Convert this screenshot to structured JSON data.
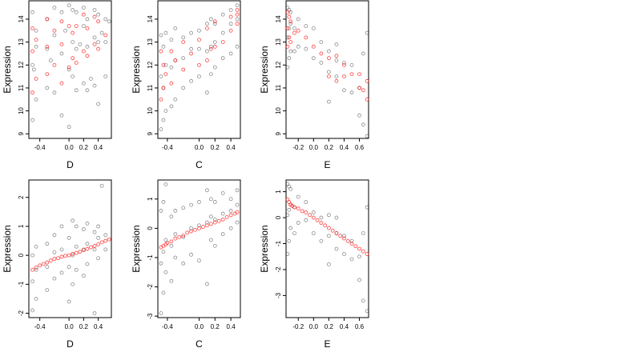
{
  "chart_data": [
    {
      "type": "scatter",
      "title": "",
      "xlabel": "D",
      "ylabel": "Expression",
      "xlim": [
        -0.55,
        0.58
      ],
      "ylim": [
        8.8,
        14.8
      ],
      "xticks": [
        -0.4,
        0.0,
        0.2,
        0.4
      ],
      "xtick_labels": [
        "-0.4",
        "0.0",
        "0.2",
        "0.4"
      ],
      "yticks": [
        9,
        10,
        11,
        12,
        13,
        14
      ],
      "ytick_labels": [
        "9",
        "10",
        "11",
        "12",
        "13",
        "14"
      ],
      "grid": false,
      "colors": {
        "observed": "#000000",
        "fitted": "#ff0000"
      },
      "series": [
        {
          "role": "observed",
          "x": [
            -0.5,
            -0.5,
            -0.5,
            -0.45,
            -0.45,
            -0.45,
            -0.3,
            -0.3,
            -0.3,
            -0.2,
            -0.2,
            -0.2,
            -0.1,
            -0.1,
            -0.1,
            0.0,
            0.0,
            0.0,
            0.05,
            0.05,
            0.05,
            0.1,
            0.1,
            0.1,
            0.2,
            0.2,
            0.2,
            0.25,
            0.25,
            0.25,
            0.35,
            0.35,
            0.35,
            0.4,
            0.4,
            0.4,
            0.5,
            0.5,
            0.5,
            -0.48,
            -0.25,
            -0.05,
            0.15,
            0.3,
            0.45,
            0.55
          ],
          "y": [
            9.6,
            12.0,
            14.3,
            10.5,
            12.8,
            13.5,
            11.0,
            12.7,
            14.0,
            10.8,
            13.3,
            14.5,
            9.8,
            12.5,
            14.3,
            9.3,
            11.8,
            14.6,
            11.5,
            13.0,
            14.4,
            10.9,
            12.7,
            14.3,
            11.2,
            13.7,
            14.5,
            10.9,
            12.8,
            14.0,
            11.1,
            13.2,
            14.4,
            10.3,
            13.0,
            14.2,
            11.5,
            13.0,
            14.0,
            11.8,
            12.2,
            13.5,
            12.9,
            11.4,
            13.4,
            13.9
          ]
        },
        {
          "role": "fitted",
          "x": [
            -0.5,
            -0.5,
            -0.5,
            -0.45,
            -0.45,
            -0.3,
            -0.3,
            -0.3,
            -0.2,
            -0.2,
            -0.1,
            -0.1,
            -0.1,
            0.0,
            0.0,
            0.05,
            0.05,
            0.1,
            0.1,
            0.2,
            0.2,
            0.25,
            0.25,
            0.35,
            0.35,
            0.4,
            0.4,
            0.5
          ],
          "y": [
            10.8,
            12.6,
            13.6,
            11.4,
            13.1,
            11.6,
            12.8,
            14.0,
            12.0,
            13.5,
            11.2,
            12.9,
            13.9,
            11.9,
            13.7,
            12.3,
            13.4,
            12.1,
            13.7,
            12.6,
            14.2,
            12.4,
            13.6,
            12.9,
            14.1,
            12.7,
            13.9,
            13.3
          ]
        }
      ]
    },
    {
      "type": "scatter",
      "title": "",
      "xlabel": "C",
      "ylabel": "Expression",
      "xlim": [
        -0.52,
        0.52
      ],
      "ylim": [
        8.8,
        14.8
      ],
      "xticks": [
        -0.4,
        0.0,
        0.2,
        0.4
      ],
      "xtick_labels": [
        "-0.4",
        "0.0",
        "0.2",
        "0.4"
      ],
      "yticks": [
        9,
        10,
        11,
        12,
        13,
        14
      ],
      "ytick_labels": [
        "9",
        "10",
        "11",
        "12",
        "13",
        "14"
      ],
      "grid": false,
      "colors": {
        "observed": "#000000",
        "fitted": "#ff0000"
      },
      "series": [
        {
          "role": "observed",
          "x": [
            -0.48,
            -0.48,
            -0.48,
            -0.45,
            -0.45,
            -0.45,
            -0.42,
            -0.42,
            -0.42,
            -0.35,
            -0.35,
            -0.35,
            -0.3,
            -0.3,
            -0.3,
            -0.2,
            -0.2,
            -0.2,
            -0.1,
            -0.1,
            -0.1,
            0.0,
            0.0,
            0.0,
            0.1,
            0.1,
            0.1,
            0.15,
            0.15,
            0.15,
            0.2,
            0.2,
            0.2,
            0.3,
            0.3,
            0.3,
            0.4,
            0.4,
            0.4,
            0.48,
            0.48,
            0.48
          ],
          "y": [
            9.2,
            11.5,
            13.3,
            9.6,
            11.0,
            12.8,
            10.0,
            12.0,
            13.4,
            10.2,
            11.9,
            13.1,
            10.5,
            12.2,
            13.6,
            11.0,
            12.3,
            13.2,
            11.3,
            12.7,
            13.4,
            11.5,
            12.7,
            13.5,
            10.8,
            12.6,
            13.8,
            11.6,
            12.8,
            14.0,
            11.9,
            13.0,
            13.8,
            12.3,
            13.4,
            14.2,
            12.5,
            13.8,
            14.4,
            12.8,
            14.0,
            14.6
          ]
        },
        {
          "role": "fitted",
          "x": [
            -0.48,
            -0.48,
            -0.45,
            -0.45,
            -0.42,
            -0.35,
            -0.35,
            -0.3,
            -0.2,
            -0.2,
            -0.1,
            0.0,
            0.0,
            0.1,
            0.1,
            0.15,
            0.2,
            0.2,
            0.3,
            0.4,
            0.4,
            0.48,
            0.48,
            0.48
          ],
          "y": [
            10.5,
            12.6,
            11.0,
            12.0,
            11.6,
            11.2,
            12.6,
            12.2,
            11.8,
            13.0,
            12.5,
            12.0,
            13.1,
            12.2,
            13.6,
            12.7,
            12.8,
            13.9,
            13.0,
            13.5,
            14.1,
            13.8,
            14.2,
            14.4
          ]
        }
      ]
    },
    {
      "type": "scatter",
      "title": "",
      "xlabel": "E",
      "ylabel": "Expression",
      "xlim": [
        -0.36,
        0.72
      ],
      "ylim": [
        8.8,
        14.8
      ],
      "xticks": [
        -0.2,
        0.0,
        0.2,
        0.4,
        0.6
      ],
      "xtick_labels": [
        "-0.2",
        "0.0",
        "0.2",
        "0.4",
        "0.6"
      ],
      "yticks": [
        9,
        10,
        11,
        12,
        13,
        14
      ],
      "ytick_labels": [
        "9",
        "10",
        "11",
        "12",
        "13",
        "14"
      ],
      "grid": false,
      "colors": {
        "observed": "#000000",
        "fitted": "#ff0000"
      },
      "series": [
        {
          "role": "observed",
          "x": [
            -0.34,
            -0.34,
            -0.34,
            -0.32,
            -0.32,
            -0.32,
            -0.3,
            -0.3,
            -0.3,
            -0.25,
            -0.25,
            -0.2,
            -0.2,
            -0.1,
            -0.1,
            0.0,
            0.0,
            0.1,
            0.1,
            0.2,
            0.2,
            0.2,
            0.3,
            0.3,
            0.3,
            0.4,
            0.4,
            0.5,
            0.5,
            0.6,
            0.6,
            0.65,
            0.65,
            0.7,
            0.7
          ],
          "y": [
            11.9,
            13.2,
            14.5,
            12.3,
            13.6,
            14.4,
            12.6,
            13.8,
            14.3,
            12.6,
            13.6,
            12.8,
            14.0,
            12.7,
            13.7,
            12.3,
            13.6,
            12.1,
            13.0,
            10.4,
            11.7,
            12.6,
            11.5,
            12.2,
            12.9,
            10.9,
            12.1,
            10.8,
            12.0,
            9.8,
            11.0,
            9.4,
            12.5,
            8.9,
            13.4
          ]
        },
        {
          "role": "fitted",
          "x": [
            -0.34,
            -0.34,
            -0.34,
            -0.32,
            -0.32,
            -0.3,
            -0.3,
            -0.25,
            -0.2,
            -0.1,
            0.0,
            0.1,
            0.2,
            0.2,
            0.3,
            0.3,
            0.4,
            0.4,
            0.5,
            0.6,
            0.6,
            0.65,
            0.7,
            0.7
          ],
          "y": [
            12.8,
            13.6,
            14.3,
            13.2,
            14.1,
            13.0,
            13.9,
            13.4,
            13.5,
            13.2,
            12.8,
            12.5,
            11.5,
            12.3,
            11.3,
            12.4,
            11.5,
            12.0,
            11.6,
            11.0,
            11.6,
            10.9,
            10.5,
            11.3
          ]
        }
      ]
    },
    {
      "type": "scatter",
      "title": "",
      "xlabel": "D",
      "ylabel": "Expression",
      "xlim": [
        -0.55,
        0.58
      ],
      "ylim": [
        -2.15,
        2.6
      ],
      "xticks": [
        -0.4,
        0.0,
        0.2,
        0.4
      ],
      "xtick_labels": [
        "-0.4",
        "0.0",
        "0.2",
        "0.4"
      ],
      "yticks": [
        -2,
        -1,
        0,
        1,
        2
      ],
      "ytick_labels": [
        "-2",
        "-1",
        "0",
        "1",
        "2"
      ],
      "grid": false,
      "colors": {
        "observed": "#000000",
        "fitted": "#ff0000"
      },
      "series": [
        {
          "role": "observed",
          "x": [
            -0.5,
            -0.5,
            -0.5,
            -0.45,
            -0.45,
            -0.45,
            -0.3,
            -0.3,
            -0.3,
            -0.2,
            -0.2,
            -0.2,
            -0.1,
            -0.1,
            -0.1,
            0.0,
            0.0,
            0.0,
            0.05,
            0.05,
            0.05,
            0.1,
            0.1,
            0.1,
            0.2,
            0.2,
            0.2,
            0.25,
            0.25,
            0.25,
            0.35,
            0.35,
            0.35,
            0.4,
            0.4,
            0.4,
            0.45,
            0.5,
            0.5
          ],
          "y": [
            -1.9,
            -0.9,
            0.0,
            -1.5,
            -0.5,
            0.3,
            -1.2,
            -0.4,
            0.4,
            -0.8,
            0.1,
            0.7,
            -0.6,
            0.2,
            1.0,
            -1.6,
            -0.4,
            0.6,
            -1.0,
            0.0,
            1.2,
            -0.5,
            0.3,
            1.0,
            -0.7,
            0.2,
            0.9,
            -0.3,
            0.4,
            1.1,
            -2.0,
            0.2,
            0.8,
            -0.1,
            0.6,
            1.0,
            2.4,
            0.2,
            0.7
          ]
        },
        {
          "role": "fitted",
          "x": [
            -0.5,
            -0.45,
            -0.4,
            -0.35,
            -0.3,
            -0.25,
            -0.2,
            -0.15,
            -0.1,
            -0.05,
            0.0,
            0.05,
            0.1,
            0.15,
            0.2,
            0.25,
            0.3,
            0.35,
            0.4,
            0.45,
            0.5,
            0.55
          ],
          "y": [
            -0.5,
            -0.42,
            -0.35,
            -0.3,
            -0.25,
            -0.18,
            -0.12,
            -0.1,
            -0.05,
            -0.02,
            0.0,
            0.05,
            0.08,
            0.12,
            0.18,
            0.22,
            0.28,
            0.32,
            0.38,
            0.45,
            0.5,
            0.55
          ]
        }
      ]
    },
    {
      "type": "scatter",
      "title": "",
      "xlabel": "C",
      "ylabel": "Expression",
      "xlim": [
        -0.52,
        0.52
      ],
      "ylim": [
        -3.05,
        1.65
      ],
      "xticks": [
        -0.4,
        0.0,
        0.2,
        0.4
      ],
      "xtick_labels": [
        "-0.4",
        "0.0",
        "0.2",
        "0.4"
      ],
      "yticks": [
        -3,
        -2,
        -1,
        0,
        1
      ],
      "ytick_labels": [
        "-3",
        "-2",
        "-1",
        "0",
        "1"
      ],
      "grid": false,
      "colors": {
        "observed": "#000000",
        "fitted": "#ff0000"
      },
      "series": [
        {
          "role": "observed",
          "x": [
            -0.48,
            -0.48,
            -0.48,
            -0.45,
            -0.45,
            -0.45,
            -0.42,
            -0.42,
            -0.42,
            -0.35,
            -0.35,
            -0.35,
            -0.3,
            -0.3,
            -0.3,
            -0.2,
            -0.2,
            -0.2,
            -0.1,
            -0.1,
            -0.1,
            0.0,
            0.0,
            0.0,
            0.1,
            0.1,
            0.1,
            0.15,
            0.15,
            0.15,
            0.2,
            0.2,
            0.2,
            0.3,
            0.3,
            0.3,
            0.4,
            0.4,
            0.4,
            0.48,
            0.48,
            0.48
          ],
          "y": [
            -2.9,
            -1.2,
            0.6,
            -2.2,
            -0.8,
            0.9,
            -1.5,
            -0.4,
            1.5,
            -1.8,
            -0.6,
            0.4,
            -1.0,
            -0.2,
            0.6,
            -1.2,
            -0.3,
            0.7,
            -0.9,
            0.0,
            0.8,
            -1.1,
            0.1,
            0.9,
            -1.9,
            0.2,
            1.3,
            -0.4,
            0.4,
            1.0,
            -0.6,
            0.3,
            0.9,
            -0.2,
            0.5,
            1.2,
            0.0,
            0.6,
            1.0,
            0.2,
            0.8,
            1.3
          ]
        },
        {
          "role": "fitted",
          "x": [
            -0.48,
            -0.45,
            -0.42,
            -0.4,
            -0.35,
            -0.3,
            -0.25,
            -0.2,
            -0.15,
            -0.1,
            -0.05,
            0.0,
            0.05,
            0.1,
            0.15,
            0.2,
            0.25,
            0.3,
            0.35,
            0.4,
            0.45,
            0.48
          ],
          "y": [
            -0.65,
            -0.6,
            -0.55,
            -0.5,
            -0.45,
            -0.35,
            -0.3,
            -0.25,
            -0.15,
            -0.1,
            -0.05,
            0.0,
            0.05,
            0.1,
            0.15,
            0.2,
            0.25,
            0.3,
            0.38,
            0.45,
            0.5,
            0.55
          ]
        }
      ]
    },
    {
      "type": "scatter",
      "title": "",
      "xlabel": "E",
      "ylabel": "Expression",
      "xlim": [
        -0.36,
        0.72
      ],
      "ylim": [
        -3.85,
        1.45
      ],
      "xticks": [
        -0.2,
        0.0,
        0.2,
        0.4,
        0.6
      ],
      "xtick_labels": [
        "-0.2",
        "0.0",
        "0.2",
        "0.4",
        "0.6"
      ],
      "yticks": [
        -3,
        -2,
        -1,
        0,
        1
      ],
      "ytick_labels": [
        "-3",
        "-2",
        "-1",
        "0",
        "1"
      ],
      "grid": false,
      "colors": {
        "observed": "#000000",
        "fitted": "#ff0000"
      },
      "series": [
        {
          "role": "observed",
          "x": [
            -0.34,
            -0.34,
            -0.34,
            -0.32,
            -0.32,
            -0.32,
            -0.3,
            -0.3,
            -0.3,
            -0.25,
            -0.25,
            -0.2,
            -0.2,
            -0.1,
            -0.1,
            0.0,
            0.0,
            0.1,
            0.1,
            0.2,
            0.2,
            0.2,
            0.3,
            0.3,
            0.3,
            0.4,
            0.4,
            0.5,
            0.5,
            0.6,
            0.6,
            0.65,
            0.65,
            0.7,
            0.7
          ],
          "y": [
            -1.4,
            0.1,
            1.3,
            -0.9,
            0.3,
            1.2,
            -0.4,
            0.5,
            1.1,
            -0.6,
            0.4,
            -0.2,
            0.8,
            -0.1,
            0.6,
            -0.6,
            0.2,
            -0.9,
            0.0,
            -1.8,
            -0.7,
            0.1,
            -1.2,
            -0.6,
            0.0,
            -1.4,
            -0.7,
            -1.6,
            -0.9,
            -2.4,
            -1.5,
            -3.2,
            -0.6,
            -3.6,
            0.4
          ]
        },
        {
          "role": "fitted",
          "x": [
            -0.34,
            -0.32,
            -0.3,
            -0.28,
            -0.25,
            -0.2,
            -0.15,
            -0.1,
            -0.05,
            0.0,
            0.05,
            0.1,
            0.15,
            0.2,
            0.25,
            0.3,
            0.35,
            0.4,
            0.45,
            0.5,
            0.55,
            0.6,
            0.65,
            0.7
          ],
          "y": [
            0.7,
            0.6,
            0.5,
            0.45,
            0.4,
            0.35,
            0.25,
            0.2,
            0.1,
            0.0,
            -0.1,
            -0.2,
            -0.3,
            -0.4,
            -0.5,
            -0.6,
            -0.7,
            -0.8,
            -0.9,
            -1.0,
            -1.1,
            -1.2,
            -1.3,
            -1.4
          ]
        }
      ]
    }
  ]
}
